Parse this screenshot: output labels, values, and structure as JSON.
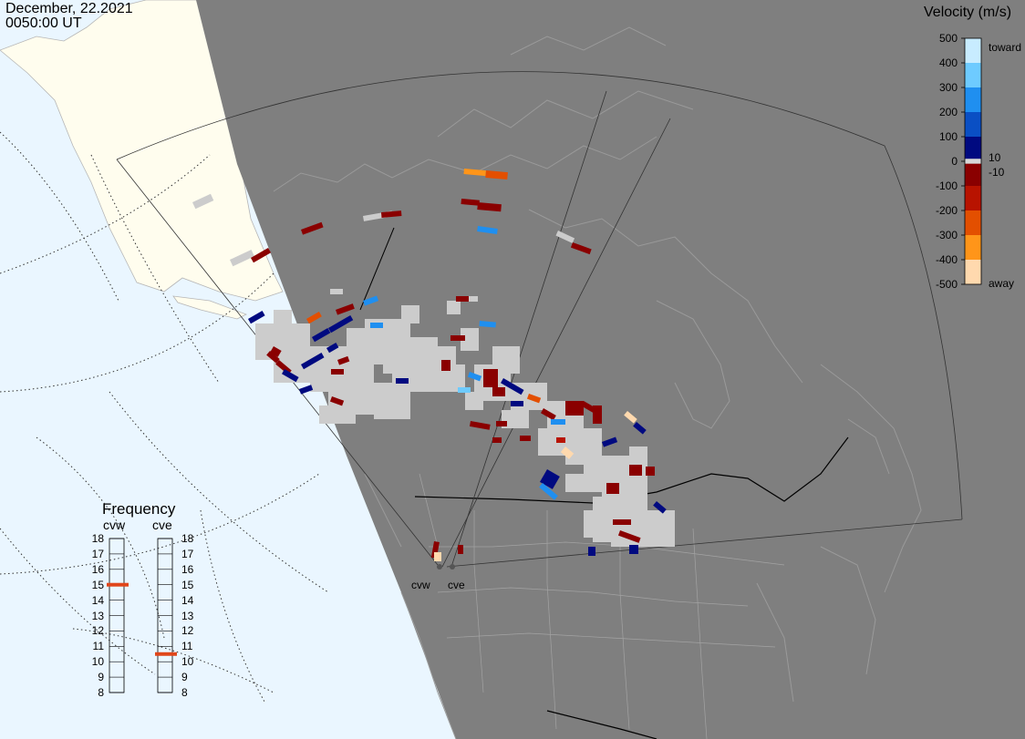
{
  "header": {
    "date": "December, 22.2021",
    "time": "0050:00 UT"
  },
  "legend": {
    "title": "Velocity (m/s)",
    "tick_labels": [
      "500",
      "400",
      "300",
      "200",
      "100",
      "0",
      "-100",
      "-200",
      "-300",
      "-400",
      "-500"
    ],
    "inner_labels": [
      "10",
      "-10"
    ],
    "toward_label": "toward",
    "away_label": "away",
    "color_bins": [
      {
        "range": "400 to 500",
        "color": "#c8ecff"
      },
      {
        "range": "300 to 400",
        "color": "#6ecbff"
      },
      {
        "range": "200 to 300",
        "color": "#1f8ff0"
      },
      {
        "range": "100 to 200",
        "color": "#0a4fc4"
      },
      {
        "range": "10 to 100",
        "color": "#000a80"
      },
      {
        "range": "-10 to 10",
        "color": "#d8d8d8"
      },
      {
        "range": "-100 to -10",
        "color": "#8a0000"
      },
      {
        "range": "-200 to -100",
        "color": "#b81300"
      },
      {
        "range": "-300 to -200",
        "color": "#e34f00"
      },
      {
        "range": "-400 to -300",
        "color": "#ff9519"
      },
      {
        "range": "-500 to -400",
        "color": "#ffd9ae"
      }
    ],
    "ground_scatter_color": "#cccccc"
  },
  "frequency": {
    "title": "Frequency",
    "radars": [
      "cvw",
      "cve"
    ],
    "ticks": [
      "18",
      "17",
      "16",
      "15",
      "14",
      "13",
      "12",
      "11",
      "10",
      "9",
      "8"
    ],
    "selected": {
      "cvw": 15,
      "cve": 10.5
    },
    "marker_color": "#e0461a"
  },
  "sites": {
    "cvw_label": "cvw",
    "cve_label": "cve"
  },
  "colors": {
    "night_shade": "#7f7f7f",
    "ocean_day": "#eaf6ff",
    "land_day": "#fffdee",
    "coastline": "#9a9a9a"
  }
}
